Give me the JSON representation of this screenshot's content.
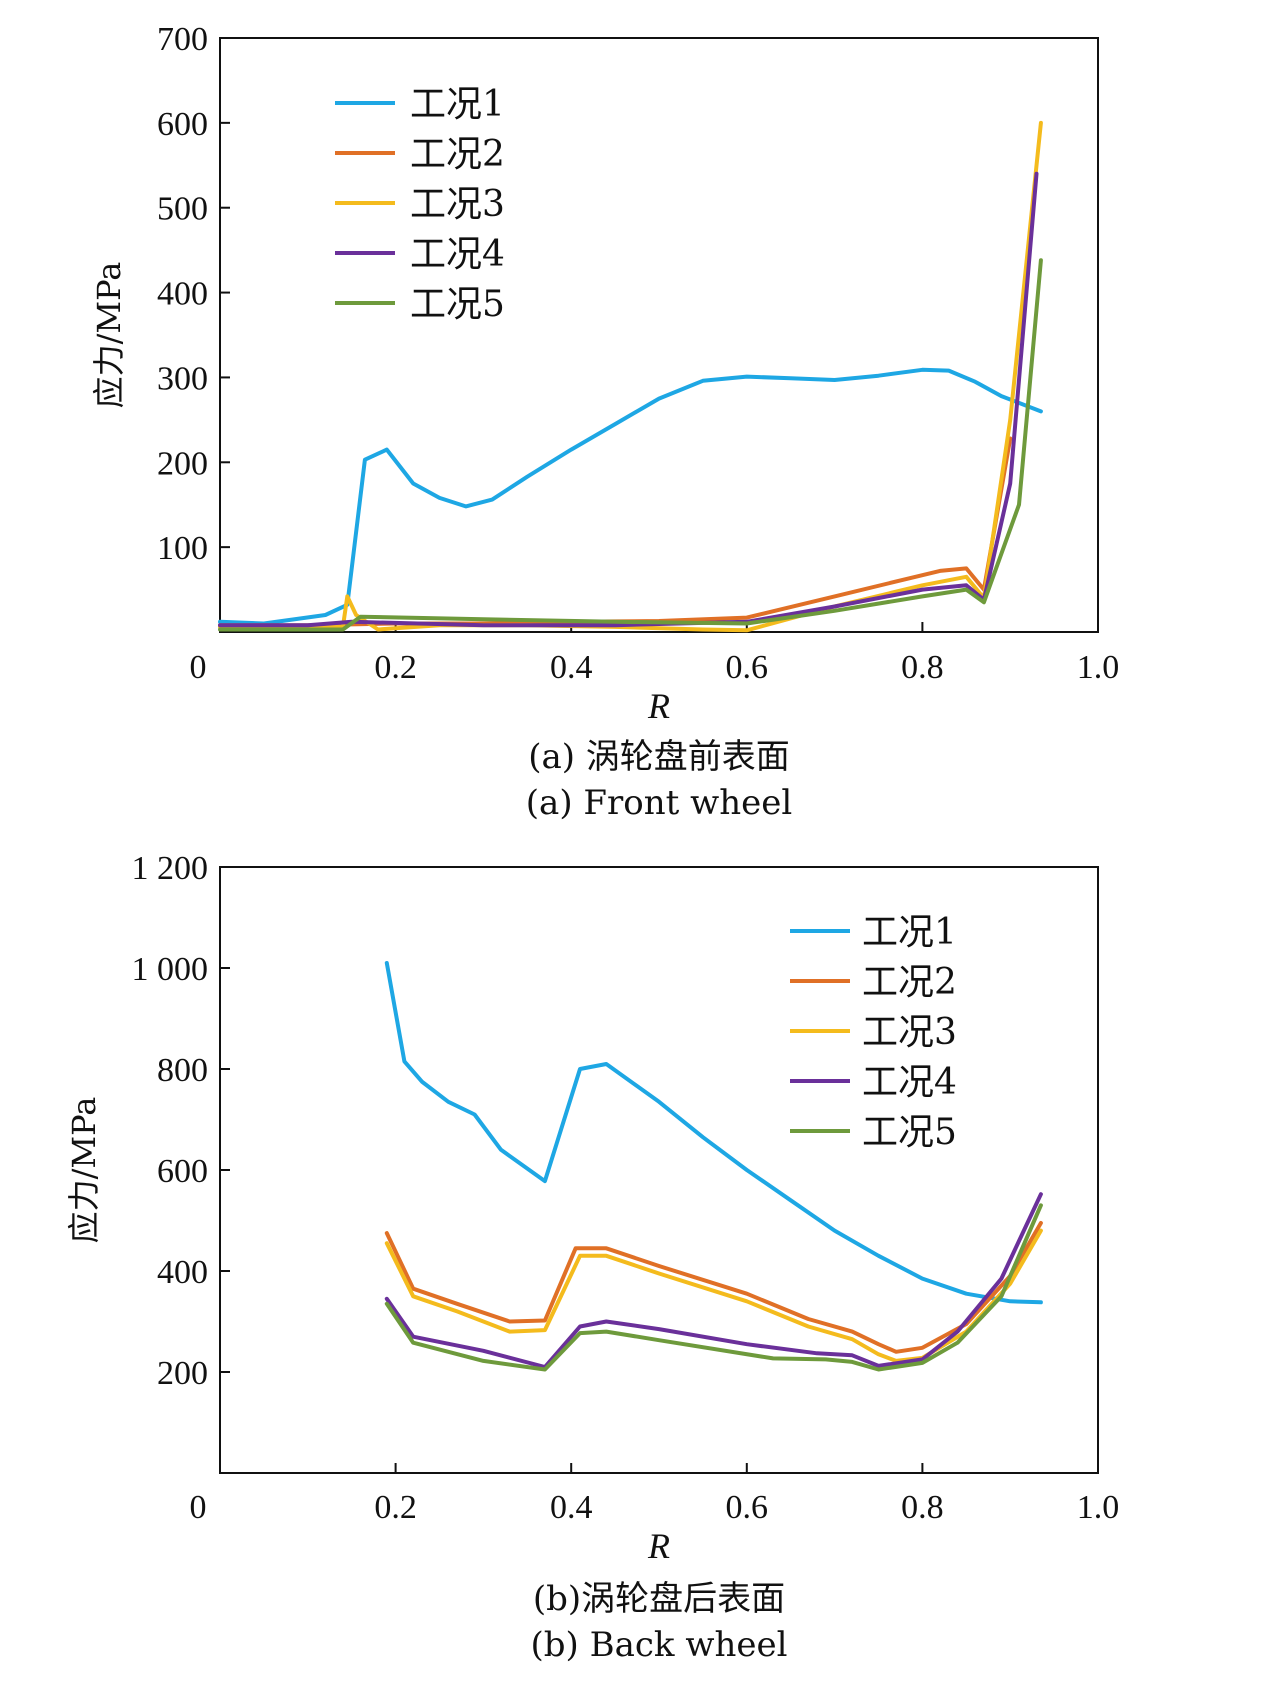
{
  "colors": {
    "s1": "#1ea7e4",
    "s2": "#e07026",
    "s3": "#f4bb1d",
    "s4": "#6a309a",
    "s5": "#6e9a3c"
  },
  "chart_data": [
    {
      "type": "line",
      "xlabel": "R",
      "ylabel": "应力/MPa",
      "caption_cn": "(a) 涡轮盘前表面",
      "caption_en": "(a) Front wheel",
      "xlim": [
        0,
        1.0
      ],
      "ylim": [
        0,
        700
      ],
      "xticks": [
        0,
        0.2,
        0.4,
        0.6,
        0.8,
        1.0
      ],
      "xtick_labels": [
        "0",
        "0.2",
        "0.4",
        "0.6",
        "0.8",
        "1.0"
      ],
      "yticks": [
        100,
        200,
        300,
        400,
        500,
        600,
        700
      ],
      "ytick_labels": [
        "100",
        "200",
        "300",
        "400",
        "500",
        "600",
        "700"
      ],
      "legend_position": "top-left",
      "series": [
        {
          "name": "工况1",
          "color_key": "s1",
          "x": [
            0,
            0.05,
            0.12,
            0.145,
            0.165,
            0.19,
            0.22,
            0.25,
            0.28,
            0.31,
            0.35,
            0.4,
            0.45,
            0.5,
            0.55,
            0.6,
            0.65,
            0.7,
            0.75,
            0.8,
            0.83,
            0.86,
            0.89,
            0.935
          ],
          "y": [
            12,
            10,
            20,
            32,
            203,
            215,
            175,
            158,
            148,
            156,
            183,
            215,
            245,
            275,
            296,
            301,
            299,
            297,
            302,
            309,
            308,
            295,
            278,
            260
          ]
        },
        {
          "name": "工况2",
          "color_key": "s2",
          "x": [
            0,
            0.1,
            0.2,
            0.3,
            0.4,
            0.5,
            0.6,
            0.7,
            0.82,
            0.85,
            0.87,
            0.9
          ],
          "y": [
            8,
            8,
            10,
            10,
            12,
            13,
            17,
            42,
            72,
            75,
            50,
            228
          ]
        },
        {
          "name": "工况3",
          "color_key": "s3",
          "x": [
            0,
            0.14,
            0.145,
            0.155,
            0.18,
            0.25,
            0.35,
            0.45,
            0.55,
            0.6,
            0.7,
            0.8,
            0.85,
            0.87,
            0.9,
            0.935
          ],
          "y": [
            6,
            6,
            42,
            20,
            3,
            8,
            8,
            6,
            3,
            2,
            30,
            55,
            65,
            40,
            250,
            600
          ]
        },
        {
          "name": "工况4",
          "color_key": "s4",
          "x": [
            0,
            0.1,
            0.15,
            0.3,
            0.45,
            0.6,
            0.7,
            0.8,
            0.85,
            0.87,
            0.9,
            0.93
          ],
          "y": [
            8,
            8,
            12,
            8,
            8,
            12,
            30,
            50,
            55,
            38,
            175,
            540
          ]
        },
        {
          "name": "工况5",
          "color_key": "s5",
          "x": [
            0,
            0.14,
            0.16,
            0.3,
            0.45,
            0.6,
            0.7,
            0.8,
            0.85,
            0.87,
            0.91,
            0.935
          ],
          "y": [
            3,
            3,
            18,
            15,
            12,
            10,
            25,
            42,
            50,
            35,
            150,
            438
          ]
        }
      ]
    },
    {
      "type": "line",
      "xlabel": "R",
      "ylabel": "应力/MPa",
      "caption_cn": "(b)涡轮盘后表面",
      "caption_en": "(b) Back wheel",
      "xlim": [
        0,
        1.0
      ],
      "ylim": [
        0,
        1200
      ],
      "xticks": [
        0,
        0.2,
        0.4,
        0.6,
        0.8,
        1.0
      ],
      "xtick_labels": [
        "0",
        "0.2",
        "0.4",
        "0.6",
        "0.8",
        "1.0"
      ],
      "yticks": [
        200,
        400,
        600,
        800,
        1000,
        1200
      ],
      "ytick_labels": [
        "200",
        "400",
        "600",
        "800",
        "1 000",
        "1 200"
      ],
      "legend_position": "top-right",
      "series": [
        {
          "name": "工况1",
          "color_key": "s1",
          "x": [
            0.19,
            0.21,
            0.23,
            0.26,
            0.29,
            0.32,
            0.37,
            0.41,
            0.44,
            0.5,
            0.55,
            0.6,
            0.65,
            0.7,
            0.75,
            0.8,
            0.85,
            0.9,
            0.935
          ],
          "y": [
            1010,
            815,
            775,
            735,
            710,
            640,
            578,
            800,
            810,
            735,
            665,
            600,
            540,
            480,
            430,
            385,
            355,
            340,
            338
          ]
        },
        {
          "name": "工况2",
          "color_key": "s2",
          "x": [
            0.19,
            0.22,
            0.27,
            0.33,
            0.37,
            0.405,
            0.44,
            0.5,
            0.6,
            0.67,
            0.72,
            0.75,
            0.77,
            0.8,
            0.85,
            0.9,
            0.935
          ],
          "y": [
            475,
            365,
            335,
            300,
            302,
            445,
            445,
            410,
            355,
            305,
            280,
            255,
            240,
            248,
            295,
            390,
            495
          ]
        },
        {
          "name": "工况3",
          "color_key": "s3",
          "x": [
            0.19,
            0.22,
            0.27,
            0.33,
            0.37,
            0.41,
            0.44,
            0.5,
            0.6,
            0.67,
            0.72,
            0.75,
            0.77,
            0.8,
            0.85,
            0.9,
            0.935
          ],
          "y": [
            455,
            350,
            320,
            280,
            283,
            430,
            430,
            395,
            340,
            290,
            265,
            235,
            222,
            228,
            280,
            375,
            480
          ]
        },
        {
          "name": "工况4",
          "color_key": "s4",
          "x": [
            0.19,
            0.22,
            0.3,
            0.37,
            0.41,
            0.44,
            0.5,
            0.6,
            0.68,
            0.72,
            0.75,
            0.8,
            0.84,
            0.89,
            0.935
          ],
          "y": [
            345,
            270,
            242,
            210,
            290,
            300,
            285,
            255,
            237,
            233,
            212,
            225,
            280,
            385,
            552
          ]
        },
        {
          "name": "工况5",
          "color_key": "s5",
          "x": [
            0.19,
            0.22,
            0.3,
            0.37,
            0.41,
            0.44,
            0.5,
            0.63,
            0.69,
            0.72,
            0.75,
            0.8,
            0.84,
            0.89,
            0.935
          ],
          "y": [
            335,
            258,
            222,
            205,
            277,
            280,
            263,
            227,
            225,
            220,
            205,
            218,
            258,
            350,
            530
          ]
        }
      ]
    }
  ]
}
